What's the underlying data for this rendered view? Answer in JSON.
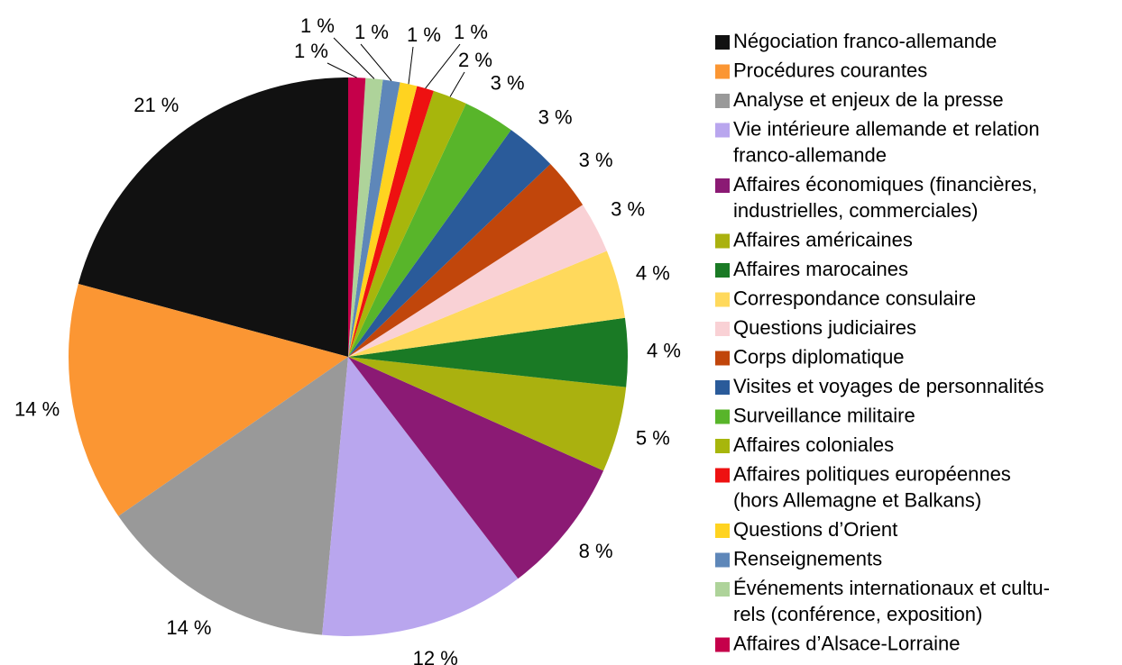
{
  "chart_data": {
    "type": "pie",
    "categories": [
      "Négociation franco-allemande",
      "Procédures courantes",
      "Analyse et enjeux de la presse",
      "Vie intérieure allemande et relation\nfranco-allemande",
      "Affaires économiques (financières,\nindustrielles, commerciales)",
      "Affaires américaines",
      "Affaires marocaines",
      "Correspondance consulaire",
      "Questions judiciaires",
      "Corps diplomatique",
      "Visites et voyages de personnalités",
      "Surveillance militaire",
      "Affaires coloniales",
      "Affaires politiques européennes\n(hors Allemagne et Balkans)",
      "Questions d’Orient",
      "Renseignements",
      "Événements internationaux et cultu-\nrels (conférence, exposition)",
      "Affaires d’Alsace-Lorraine"
    ],
    "values": [
      21,
      14,
      14,
      12,
      8,
      5,
      4,
      4,
      3,
      3,
      3,
      3,
      2,
      1,
      1,
      1,
      1,
      1
    ],
    "value_labels": [
      "21 %",
      "14 %",
      "14 %",
      "12 %",
      "8 %",
      "5 %",
      "4 %",
      "4 %",
      "3 %",
      "3 %",
      "3 %",
      "3 %",
      "2 %",
      "1 %",
      "1 %",
      "1 %",
      "1 %",
      "1 %"
    ],
    "colors": [
      "#111111",
      "#fb9633",
      "#999999",
      "#b9a6ee",
      "#8b1a74",
      "#aab10f",
      "#1a7a25",
      "#ffd95c",
      "#f9d1d5",
      "#c1460b",
      "#2a5b9a",
      "#58b52a",
      "#a7b60c",
      "#ee1111",
      "#ffd320",
      "#5e87b9",
      "#aed39a",
      "#c5004a"
    ],
    "legend": "right"
  }
}
